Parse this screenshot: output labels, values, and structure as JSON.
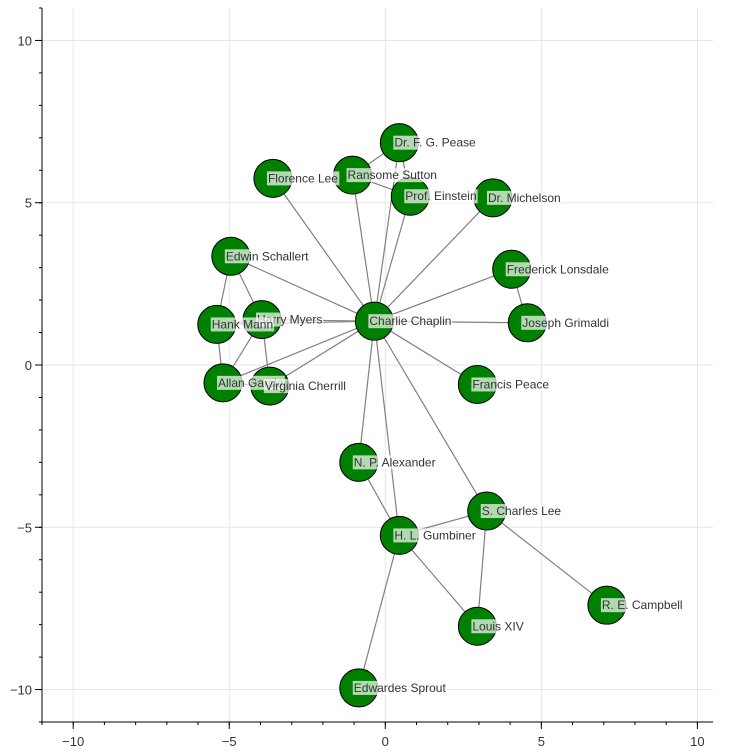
{
  "chart_data": {
    "type": "network",
    "title": "",
    "xlabel": "",
    "ylabel": "",
    "xlim": [
      -11,
      10.5
    ],
    "ylim": [
      -11,
      11
    ],
    "grid": true,
    "x_ticks": [
      -10,
      -5,
      0,
      5,
      10
    ],
    "y_ticks": [
      -10,
      -5,
      0,
      5,
      10
    ],
    "x_tick_labels": [
      "−10",
      "−5",
      "0",
      "5",
      "10"
    ],
    "y_tick_labels": [
      "−10",
      "−5",
      "0",
      "5",
      "10"
    ],
    "node_color": "#008000",
    "edge_color": "#808080",
    "nodes": [
      {
        "id": "charlie-chaplin",
        "label": "Charlie Chaplin",
        "x": -0.35,
        "y": 1.35
      },
      {
        "id": "dr-f-g-pease",
        "label": "Dr. F. G. Pease",
        "x": 0.45,
        "y": 6.85
      },
      {
        "id": "ransome-sutton",
        "label": "Ransome Sutton",
        "x": -1.05,
        "y": 5.85
      },
      {
        "id": "florence-lee",
        "label": "Florence Lee",
        "x": -3.6,
        "y": 5.75
      },
      {
        "id": "prof-einstein",
        "label": "Prof. Einstein",
        "x": 0.8,
        "y": 5.2
      },
      {
        "id": "dr-michelson",
        "label": "Dr. Michelson",
        "x": 3.45,
        "y": 5.15
      },
      {
        "id": "edwin-schallert",
        "label": "Edwin Schallert",
        "x": -4.95,
        "y": 3.35
      },
      {
        "id": "frederick-lonsdale",
        "label": "Frederick Lonsdale",
        "x": 4.05,
        "y": 2.95
      },
      {
        "id": "harry-myers",
        "label": "Harry Myers",
        "x": -3.95,
        "y": 1.4
      },
      {
        "id": "hank-mann",
        "label": "Hank Mann",
        "x": -5.4,
        "y": 1.25
      },
      {
        "id": "joseph-grimaldi",
        "label": "Joseph Grimaldi",
        "x": 4.55,
        "y": 1.3
      },
      {
        "id": "allan-garcia",
        "label": "Allan Garcia",
        "x": -5.2,
        "y": -0.55
      },
      {
        "id": "virginia-cherrill",
        "label": "Virginia Cherrill",
        "x": -3.7,
        "y": -0.65
      },
      {
        "id": "francis-peace",
        "label": "Francis Peace",
        "x": 2.95,
        "y": -0.6
      },
      {
        "id": "n-p-alexander",
        "label": "N. P. Alexander",
        "x": -0.85,
        "y": -3.0
      },
      {
        "id": "s-charles-lee",
        "label": "S. Charles Lee",
        "x": 3.25,
        "y": -4.5
      },
      {
        "id": "h-l-gumbiner",
        "label": "H. L. Gumbiner",
        "x": 0.45,
        "y": -5.25
      },
      {
        "id": "r-e-campbell",
        "label": "R. E. Campbell",
        "x": 7.1,
        "y": -7.4
      },
      {
        "id": "louis-xiv",
        "label": "Louis XIV",
        "x": 2.95,
        "y": -8.05
      },
      {
        "id": "edwardes-sprout",
        "label": "Edwardes Sprout",
        "x": -0.85,
        "y": -9.95
      }
    ],
    "edges": [
      [
        "charlie-chaplin",
        "dr-f-g-pease"
      ],
      [
        "charlie-chaplin",
        "ransome-sutton"
      ],
      [
        "charlie-chaplin",
        "florence-lee"
      ],
      [
        "charlie-chaplin",
        "prof-einstein"
      ],
      [
        "charlie-chaplin",
        "dr-michelson"
      ],
      [
        "charlie-chaplin",
        "edwin-schallert"
      ],
      [
        "charlie-chaplin",
        "frederick-lonsdale"
      ],
      [
        "charlie-chaplin",
        "harry-myers"
      ],
      [
        "charlie-chaplin",
        "hank-mann"
      ],
      [
        "charlie-chaplin",
        "joseph-grimaldi"
      ],
      [
        "charlie-chaplin",
        "allan-garcia"
      ],
      [
        "charlie-chaplin",
        "virginia-cherrill"
      ],
      [
        "charlie-chaplin",
        "francis-peace"
      ],
      [
        "charlie-chaplin",
        "n-p-alexander"
      ],
      [
        "charlie-chaplin",
        "h-l-gumbiner"
      ],
      [
        "charlie-chaplin",
        "s-charles-lee"
      ],
      [
        "ransome-sutton",
        "dr-f-g-pease"
      ],
      [
        "ransome-sutton",
        "prof-einstein"
      ],
      [
        "dr-f-g-pease",
        "prof-einstein"
      ],
      [
        "frederick-lonsdale",
        "joseph-grimaldi"
      ],
      [
        "edwin-schallert",
        "hank-mann"
      ],
      [
        "edwin-schallert",
        "harry-myers"
      ],
      [
        "hank-mann",
        "allan-garcia"
      ],
      [
        "hank-mann",
        "harry-myers"
      ],
      [
        "harry-myers",
        "allan-garcia"
      ],
      [
        "harry-myers",
        "virginia-cherrill"
      ],
      [
        "allan-garcia",
        "virginia-cherrill"
      ],
      [
        "n-p-alexander",
        "h-l-gumbiner"
      ],
      [
        "h-l-gumbiner",
        "s-charles-lee"
      ],
      [
        "h-l-gumbiner",
        "louis-xiv"
      ],
      [
        "h-l-gumbiner",
        "edwardes-sprout"
      ],
      [
        "s-charles-lee",
        "louis-xiv"
      ],
      [
        "s-charles-lee",
        "r-e-campbell"
      ]
    ]
  }
}
